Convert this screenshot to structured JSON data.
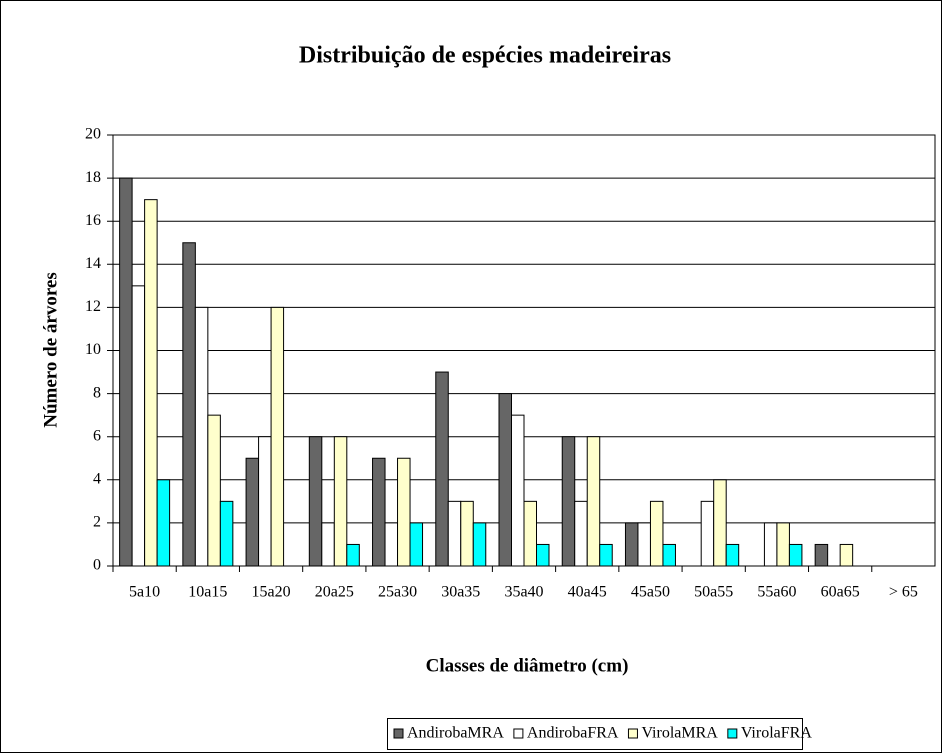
{
  "chart_data": {
    "type": "bar",
    "title": "Distribuição de espécies madeireiras",
    "x_label": "Classes de diâmetro (cm)",
    "y_label": "Número de árvores",
    "categories": [
      "5a10",
      "10a15",
      "15a20",
      "20a25",
      "25a30",
      "30a35",
      "35a40",
      "40a45",
      "45a50",
      "50a55",
      "55a60",
      "60a65",
      "> 65"
    ],
    "series": [
      {
        "name": "AndirobaMRA",
        "color": "#666666",
        "values": [
          18,
          15,
          5,
          6,
          5,
          9,
          8,
          6,
          2,
          0,
          0,
          1,
          0
        ]
      },
      {
        "name": "AndirobaFRA",
        "color": "#ffffff",
        "values": [
          13,
          12,
          6,
          2,
          2,
          3,
          7,
          3,
          2,
          3,
          2,
          0,
          0
        ]
      },
      {
        "name": "VirolaMRA",
        "color": "#ffffcc",
        "values": [
          17,
          7,
          12,
          6,
          5,
          3,
          3,
          6,
          3,
          4,
          2,
          1,
          0
        ]
      },
      {
        "name": "VirolaFRA",
        "color": "#00ffff",
        "values": [
          4,
          3,
          0,
          1,
          2,
          2,
          1,
          1,
          1,
          1,
          1,
          0,
          0
        ]
      }
    ],
    "ylim": [
      0,
      20
    ],
    "yticks": [
      0,
      2,
      4,
      6,
      8,
      10,
      12,
      14,
      16,
      18,
      20
    ],
    "grid": true,
    "legend": "bottom"
  }
}
